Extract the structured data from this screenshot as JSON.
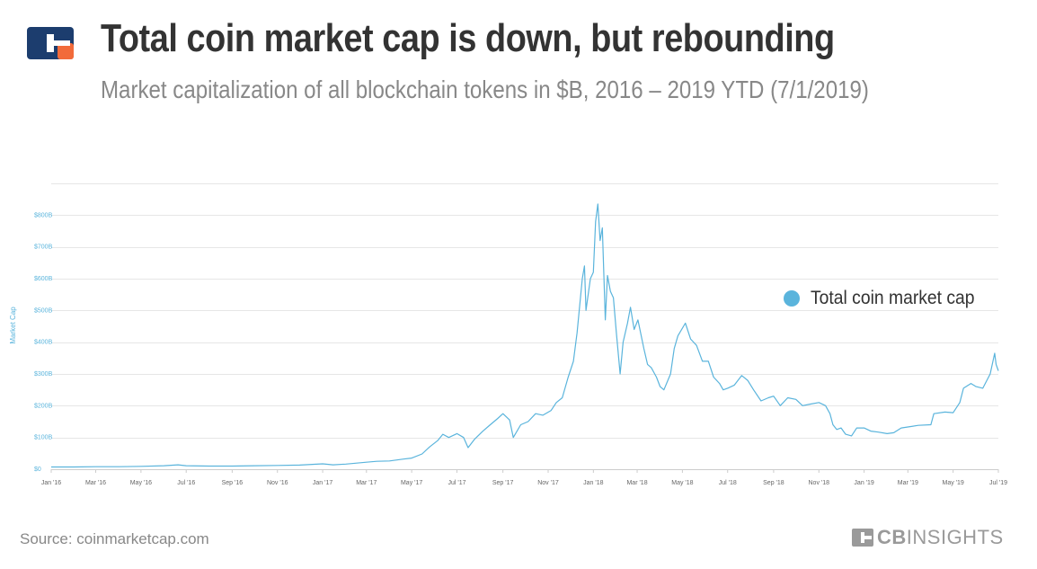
{
  "header": {
    "title": "Total coin market cap is down, but rebounding",
    "subtitle": "Market capitalization of all blockchain tokens in $B, 2016 – 2019 YTD (7/1/2019)"
  },
  "footer": {
    "source": "Source: coinmarketcap.com",
    "brand_bold": "CB",
    "brand_rest": "INSIGHTS"
  },
  "colors": {
    "line": "#5AB4DC",
    "title": "#333333",
    "subtitle": "#888888",
    "logo_navy": "#1C3D6E",
    "logo_orange": "#F26B3A",
    "grid": "#E6E6E6"
  },
  "chart_data": {
    "type": "line",
    "ylabel": "Market Cap",
    "ylim": [
      0,
      900
    ],
    "yticks": [
      0,
      100,
      200,
      300,
      400,
      500,
      600,
      700,
      800
    ],
    "ytick_labels": [
      "$0",
      "$100B",
      "$200B",
      "$300B",
      "$400B",
      "$500B",
      "$600B",
      "$700B",
      "$800B"
    ],
    "xlim": [
      "2016-01-01",
      "2019-07-01"
    ],
    "xticks": [
      "2016-01-01",
      "2016-03-01",
      "2016-05-01",
      "2016-07-01",
      "2016-09-01",
      "2016-11-01",
      "2017-01-01",
      "2017-03-01",
      "2017-05-01",
      "2017-07-01",
      "2017-09-01",
      "2017-11-01",
      "2018-01-01",
      "2018-03-01",
      "2018-05-01",
      "2018-07-01",
      "2018-09-01",
      "2018-11-01",
      "2019-01-01",
      "2019-03-01",
      "2019-05-01",
      "2019-07-01"
    ],
    "xtick_labels": [
      "Jan '16",
      "Mar '16",
      "May '16",
      "Jul '16",
      "Sep '16",
      "Nov '16",
      "Jan '17",
      "Mar '17",
      "May '17",
      "Jul '17",
      "Sep '17",
      "Nov '17",
      "Jan '18",
      "Mar '18",
      "May '18",
      "Jul '18",
      "Sep '18",
      "Nov '18",
      "Jan '19",
      "Mar '19",
      "May '19",
      "Jul '19"
    ],
    "grid": true,
    "legend_position": "right",
    "series": [
      {
        "name": "Total coin market cap",
        "color": "#5AB4DC",
        "points": [
          [
            "2016-01-01",
            7
          ],
          [
            "2016-02-01",
            7
          ],
          [
            "2016-03-01",
            8
          ],
          [
            "2016-04-01",
            8
          ],
          [
            "2016-05-01",
            9
          ],
          [
            "2016-06-01",
            11
          ],
          [
            "2016-06-20",
            14
          ],
          [
            "2016-07-01",
            11
          ],
          [
            "2016-08-01",
            10
          ],
          [
            "2016-09-01",
            10
          ],
          [
            "2016-10-01",
            11
          ],
          [
            "2016-11-01",
            12
          ],
          [
            "2016-12-01",
            13
          ],
          [
            "2017-01-01",
            17
          ],
          [
            "2017-01-15",
            14
          ],
          [
            "2017-02-01",
            16
          ],
          [
            "2017-03-01",
            22
          ],
          [
            "2017-03-15",
            25
          ],
          [
            "2017-04-01",
            26
          ],
          [
            "2017-04-20",
            32
          ],
          [
            "2017-05-01",
            35
          ],
          [
            "2017-05-15",
            48
          ],
          [
            "2017-05-25",
            70
          ],
          [
            "2017-06-05",
            90
          ],
          [
            "2017-06-12",
            110
          ],
          [
            "2017-06-20",
            100
          ],
          [
            "2017-07-01",
            112
          ],
          [
            "2017-07-10",
            100
          ],
          [
            "2017-07-16",
            68
          ],
          [
            "2017-07-25",
            95
          ],
          [
            "2017-08-05",
            120
          ],
          [
            "2017-08-15",
            140
          ],
          [
            "2017-08-25",
            160
          ],
          [
            "2017-09-01",
            175
          ],
          [
            "2017-09-10",
            155
          ],
          [
            "2017-09-15",
            100
          ],
          [
            "2017-09-25",
            140
          ],
          [
            "2017-10-05",
            150
          ],
          [
            "2017-10-15",
            175
          ],
          [
            "2017-10-25",
            170
          ],
          [
            "2017-11-05",
            185
          ],
          [
            "2017-11-12",
            210
          ],
          [
            "2017-11-20",
            225
          ],
          [
            "2017-11-28",
            290
          ],
          [
            "2017-12-05",
            340
          ],
          [
            "2017-12-10",
            430
          ],
          [
            "2017-12-17",
            600
          ],
          [
            "2017-12-20",
            640
          ],
          [
            "2017-12-22",
            500
          ],
          [
            "2017-12-28",
            600
          ],
          [
            "2018-01-01",
            620
          ],
          [
            "2018-01-04",
            780
          ],
          [
            "2018-01-07",
            835
          ],
          [
            "2018-01-10",
            720
          ],
          [
            "2018-01-13",
            760
          ],
          [
            "2018-01-17",
            470
          ],
          [
            "2018-01-20",
            610
          ],
          [
            "2018-01-24",
            560
          ],
          [
            "2018-01-28",
            540
          ],
          [
            "2018-02-01",
            430
          ],
          [
            "2018-02-06",
            300
          ],
          [
            "2018-02-10",
            400
          ],
          [
            "2018-02-16",
            460
          ],
          [
            "2018-02-20",
            510
          ],
          [
            "2018-02-25",
            440
          ],
          [
            "2018-03-02",
            470
          ],
          [
            "2018-03-10",
            380
          ],
          [
            "2018-03-15",
            330
          ],
          [
            "2018-03-20",
            320
          ],
          [
            "2018-03-27",
            290
          ],
          [
            "2018-04-01",
            260
          ],
          [
            "2018-04-06",
            250
          ],
          [
            "2018-04-15",
            300
          ],
          [
            "2018-04-20",
            380
          ],
          [
            "2018-04-25",
            420
          ],
          [
            "2018-05-05",
            460
          ],
          [
            "2018-05-12",
            410
          ],
          [
            "2018-05-20",
            390
          ],
          [
            "2018-05-28",
            340
          ],
          [
            "2018-06-05",
            340
          ],
          [
            "2018-06-12",
            290
          ],
          [
            "2018-06-20",
            270
          ],
          [
            "2018-06-25",
            250
          ],
          [
            "2018-07-01",
            255
          ],
          [
            "2018-07-10",
            265
          ],
          [
            "2018-07-20",
            295
          ],
          [
            "2018-07-28",
            280
          ],
          [
            "2018-08-05",
            250
          ],
          [
            "2018-08-15",
            215
          ],
          [
            "2018-08-25",
            225
          ],
          [
            "2018-09-01",
            230
          ],
          [
            "2018-09-10",
            200
          ],
          [
            "2018-09-20",
            225
          ],
          [
            "2018-10-01",
            220
          ],
          [
            "2018-10-10",
            200
          ],
          [
            "2018-10-20",
            205
          ],
          [
            "2018-11-01",
            210
          ],
          [
            "2018-11-10",
            200
          ],
          [
            "2018-11-16",
            175
          ],
          [
            "2018-11-20",
            140
          ],
          [
            "2018-11-25",
            125
          ],
          [
            "2018-12-01",
            130
          ],
          [
            "2018-12-07",
            110
          ],
          [
            "2018-12-15",
            105
          ],
          [
            "2018-12-22",
            130
          ],
          [
            "2019-01-01",
            130
          ],
          [
            "2019-01-10",
            120
          ],
          [
            "2019-01-20",
            117
          ],
          [
            "2019-02-01",
            112
          ],
          [
            "2019-02-10",
            115
          ],
          [
            "2019-02-20",
            130
          ],
          [
            "2019-03-01",
            133
          ],
          [
            "2019-03-15",
            138
          ],
          [
            "2019-04-01",
            140
          ],
          [
            "2019-04-05",
            175
          ],
          [
            "2019-04-20",
            180
          ],
          [
            "2019-05-01",
            178
          ],
          [
            "2019-05-10",
            210
          ],
          [
            "2019-05-15",
            255
          ],
          [
            "2019-05-25",
            270
          ],
          [
            "2019-06-01",
            260
          ],
          [
            "2019-06-10",
            255
          ],
          [
            "2019-06-20",
            300
          ],
          [
            "2019-06-26",
            365
          ],
          [
            "2019-06-28",
            330
          ],
          [
            "2019-07-01",
            310
          ]
        ]
      }
    ]
  }
}
